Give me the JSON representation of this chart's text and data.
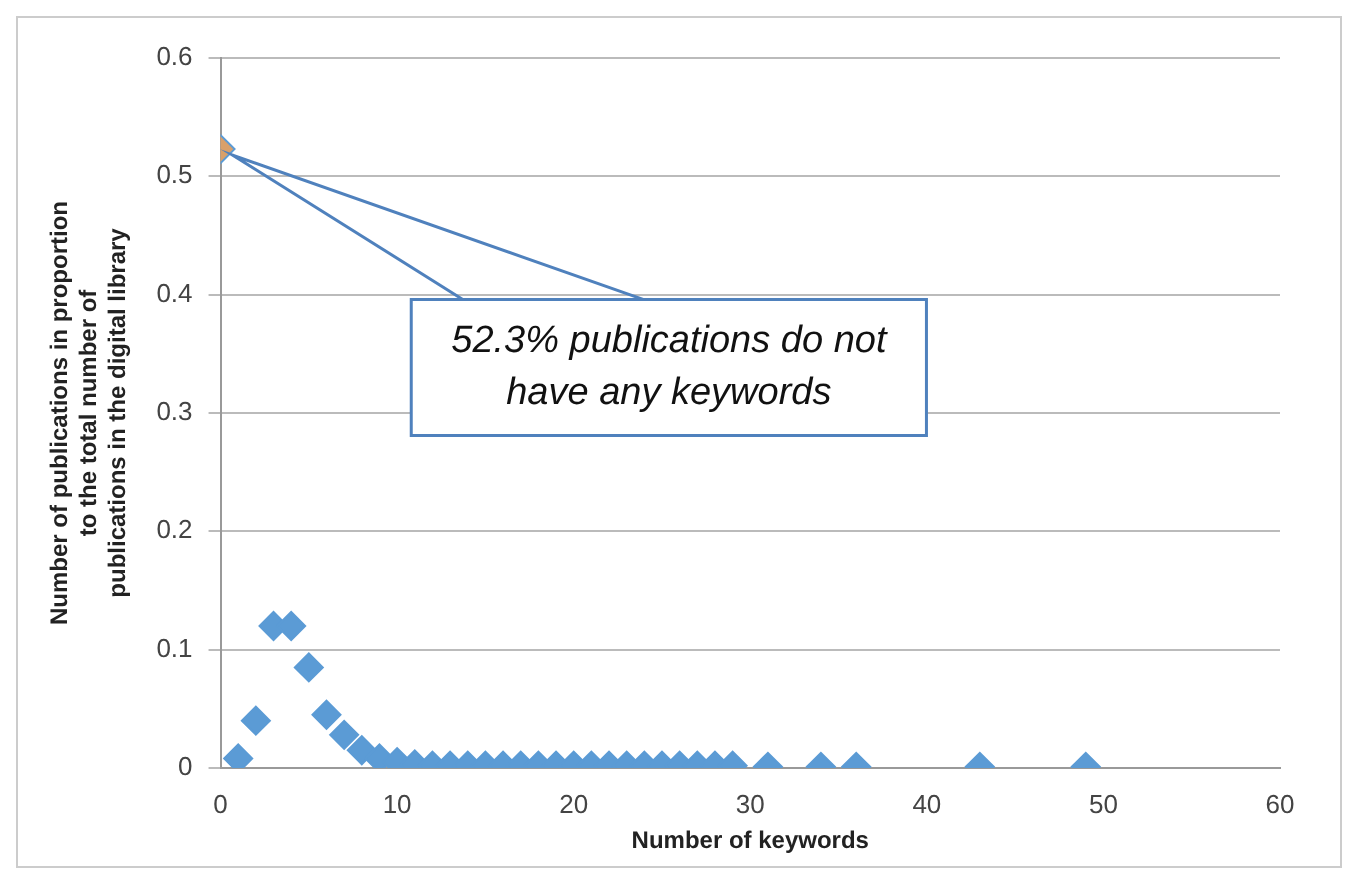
{
  "chart_data": {
    "type": "scatter",
    "xlabel": "Number of keywords",
    "ylabel": "Number of publications in proportion to the total number of publications in the digital library",
    "x": [
      0,
      1,
      2,
      3,
      4,
      5,
      6,
      7,
      8,
      9,
      10,
      11,
      12,
      13,
      14,
      15,
      16,
      17,
      18,
      19,
      20,
      21,
      22,
      23,
      24,
      25,
      26,
      27,
      28,
      29,
      31,
      34,
      36,
      43,
      49
    ],
    "series": [
      {
        "color": "#5b9bd5",
        "colors": [
          "#d9a06a",
          "#5b9bd5",
          "#5b9bd5",
          "#5b9bd5",
          "#5b9bd5",
          "#5b9bd5",
          "#5b9bd5",
          "#5b9bd5",
          "#5b9bd5",
          "#5b9bd5",
          "#5b9bd5",
          "#5b9bd5",
          "#5b9bd5",
          "#5b9bd5",
          "#5b9bd5",
          "#5b9bd5",
          "#5b9bd5",
          "#5b9bd5",
          "#5b9bd5",
          "#5b9bd5",
          "#5b9bd5",
          "#5b9bd5",
          "#5b9bd5",
          "#5b9bd5",
          "#5b9bd5",
          "#5b9bd5",
          "#5b9bd5",
          "#5b9bd5",
          "#5b9bd5",
          "#5b9bd5",
          "#5b9bd5",
          "#5b9bd5",
          "#5b9bd5",
          "#5b9bd5",
          "#5b9bd5"
        ],
        "values": [
          0.523,
          0.008,
          0.04,
          0.12,
          0.12,
          0.085,
          0.045,
          0.028,
          0.015,
          0.008,
          0.005,
          0.003,
          0.002,
          0.002,
          0.002,
          0.002,
          0.002,
          0.002,
          0.002,
          0.002,
          0.002,
          0.002,
          0.002,
          0.002,
          0.002,
          0.002,
          0.002,
          0.002,
          0.002,
          0.002,
          0.001,
          0.001,
          0.001,
          0.001,
          0.001
        ]
      }
    ],
    "xlim": [
      0,
      60
    ],
    "xticks": [
      0,
      10,
      20,
      30,
      40,
      50,
      60
    ],
    "ylim": [
      0,
      0.6
    ],
    "yticks": [
      0,
      0.1,
      0.2,
      0.3,
      0.4,
      0.5,
      0.6
    ],
    "grid": "y",
    "marker": "diamond",
    "legend": false,
    "annotations": [
      "52.3% publications do not have any keywords"
    ]
  }
}
